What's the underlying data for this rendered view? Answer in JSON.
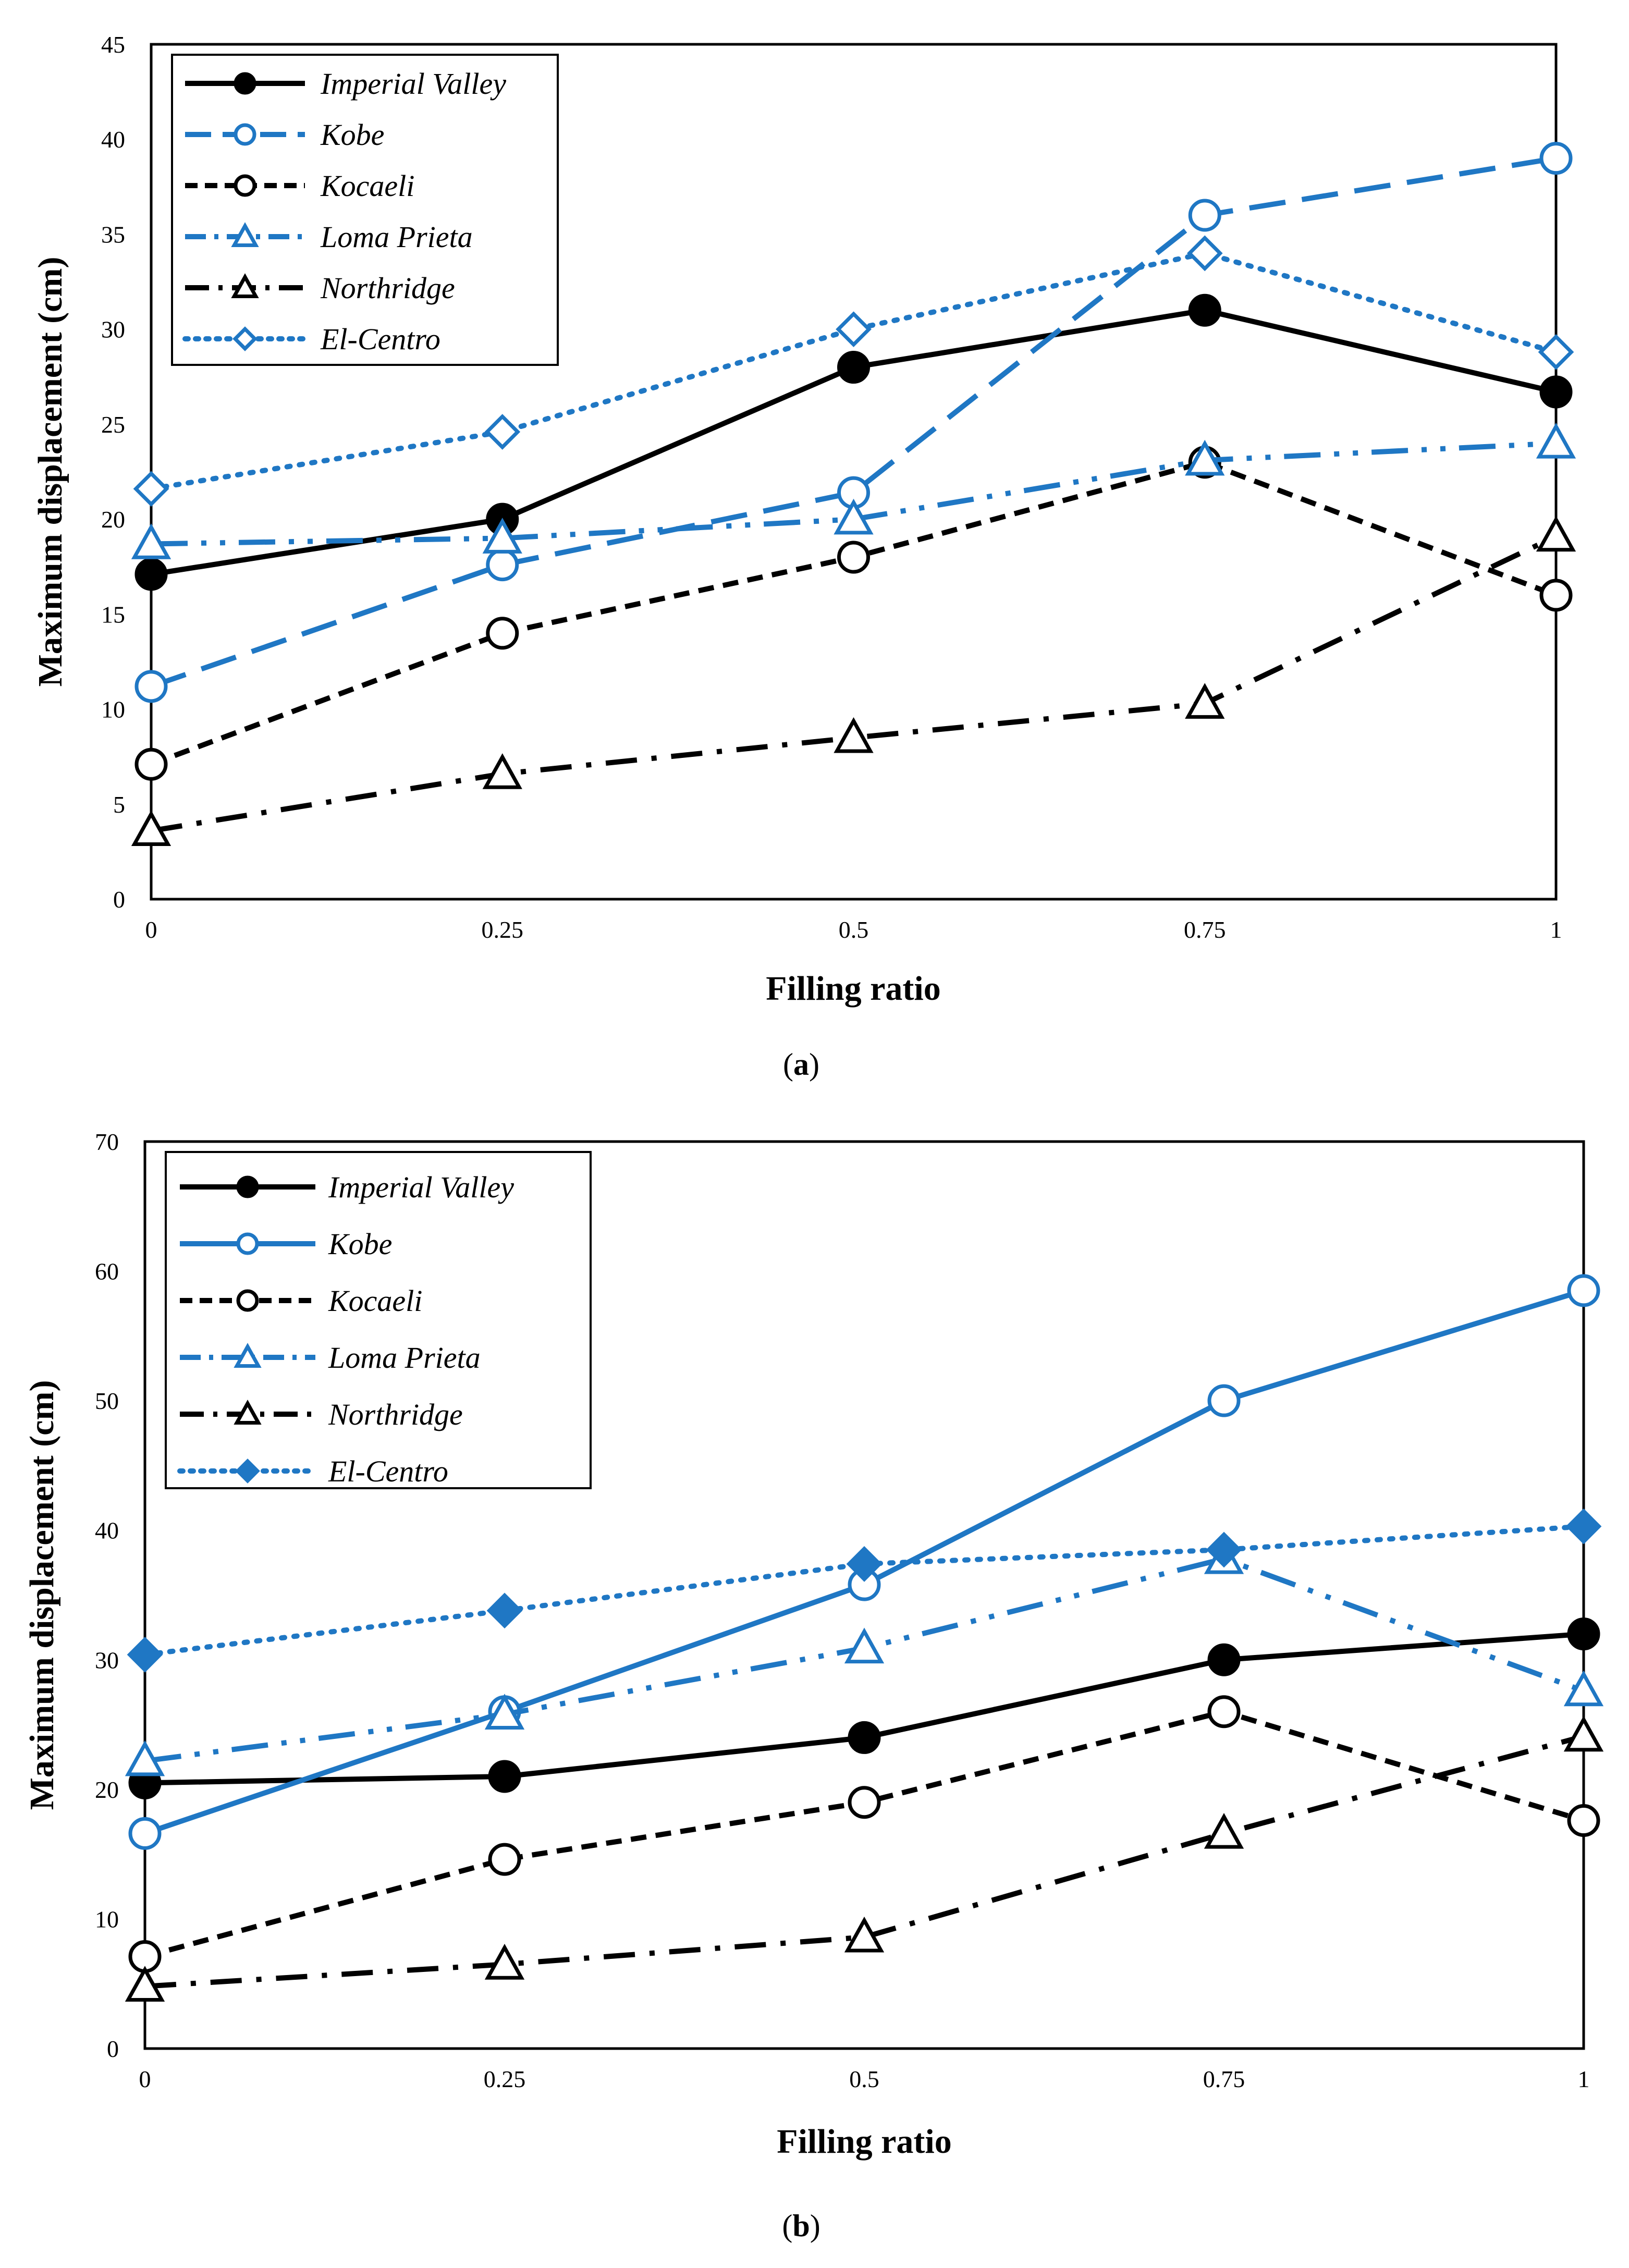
{
  "chart_data": [
    {
      "type": "line",
      "caption": "a",
      "x": [
        0,
        0.25,
        0.5,
        0.75,
        1
      ],
      "x_tick_labels": [
        "0",
        "0.25",
        "0.5",
        "0.75",
        "1"
      ],
      "xlabel": "Filling ratio",
      "ylabel": "Maximum displacement (cm)",
      "ylim": [
        0,
        45
      ],
      "y_ticks": [
        0,
        5,
        10,
        15,
        20,
        25,
        30,
        35,
        40,
        45
      ],
      "legend_position": "top-left",
      "grid": false,
      "series": [
        {
          "name": "Imperial Valley",
          "values": [
            17.1,
            20.0,
            28.0,
            31.0,
            26.7
          ],
          "color": "#000000",
          "dash": "solid",
          "marker": "circle",
          "marker_fill": "filled"
        },
        {
          "name": "Kobe",
          "values": [
            11.2,
            17.6,
            21.4,
            36.0,
            39.0
          ],
          "color": "#1f77c4",
          "dash": "dash",
          "marker": "circle",
          "marker_fill": "open"
        },
        {
          "name": "Kocaeli",
          "values": [
            7.1,
            14.0,
            18.0,
            23.0,
            16.0
          ],
          "color": "#000000",
          "dash": "short-dash",
          "marker": "circle",
          "marker_fill": "open"
        },
        {
          "name": "Loma Prieta",
          "values": [
            18.7,
            19.0,
            20.0,
            23.1,
            24.0
          ],
          "color": "#1f77c4",
          "dash": "dash-dot-dot",
          "marker": "triangle",
          "marker_fill": "open"
        },
        {
          "name": "Northridge",
          "values": [
            3.6,
            6.6,
            8.5,
            10.3,
            19.1
          ],
          "color": "#000000",
          "dash": "dash-dot",
          "marker": "triangle",
          "marker_fill": "open"
        },
        {
          "name": "El-Centro",
          "values": [
            21.6,
            24.6,
            30.0,
            34.0,
            28.8
          ],
          "color": "#1f77c4",
          "dash": "dot",
          "marker": "diamond",
          "marker_fill": "open"
        }
      ]
    },
    {
      "type": "line",
      "caption": "b",
      "x": [
        0,
        0.25,
        0.5,
        0.75,
        1
      ],
      "x_tick_labels": [
        "0",
        "0.25",
        "0.5",
        "0.75",
        "1"
      ],
      "xlabel": "Filling ratio",
      "ylabel": "Maximum displacement (cm)",
      "ylim": [
        0,
        70
      ],
      "y_ticks": [
        0,
        10,
        20,
        30,
        40,
        50,
        60,
        70
      ],
      "legend_position": "top-left",
      "grid": false,
      "series": [
        {
          "name": "Imperial Valley",
          "values": [
            20.5,
            21.0,
            24.0,
            30.0,
            32.0
          ],
          "color": "#000000",
          "dash": "solid",
          "marker": "circle",
          "marker_fill": "filled"
        },
        {
          "name": "Kobe",
          "values": [
            16.6,
            26.0,
            35.8,
            50.0,
            58.5
          ],
          "color": "#1f77c4",
          "dash": "solid",
          "marker": "circle",
          "marker_fill": "open"
        },
        {
          "name": "Kocaeli",
          "values": [
            7.1,
            14.6,
            19.0,
            26.0,
            17.6
          ],
          "color": "#000000",
          "dash": "short-dash",
          "marker": "circle",
          "marker_fill": "open"
        },
        {
          "name": "Loma Prieta",
          "values": [
            22.2,
            25.8,
            30.9,
            37.8,
            27.6
          ],
          "color": "#1f77c4",
          "dash": "dash-dot-dot",
          "marker": "triangle",
          "marker_fill": "open"
        },
        {
          "name": "Northridge",
          "values": [
            4.8,
            6.5,
            8.6,
            16.6,
            24.1
          ],
          "color": "#000000",
          "dash": "dash-dot",
          "marker": "triangle",
          "marker_fill": "open"
        },
        {
          "name": "El-Centro",
          "values": [
            30.4,
            33.8,
            37.4,
            38.5,
            40.3
          ],
          "color": "#1f77c4",
          "dash": "dot",
          "marker": "diamond",
          "marker_fill": "filled"
        }
      ]
    }
  ]
}
